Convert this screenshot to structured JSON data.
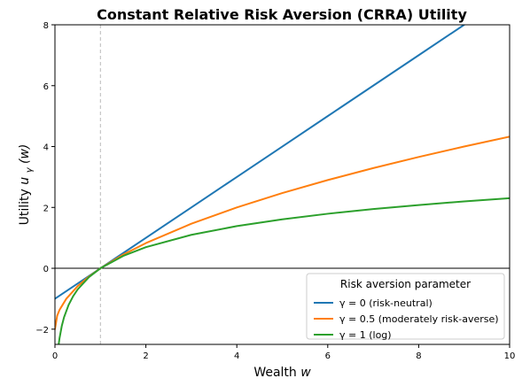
{
  "chart_data": {
    "type": "line",
    "title": "Constant Relative Risk Aversion (CRRA) Utility",
    "xlabel_text": "Wealth",
    "xlabel_var": "w",
    "ylabel_text": "Utility",
    "ylabel_var": "u",
    "ylabel_sub": "γ",
    "ylabel_arg": "(w)",
    "xlim": [
      0,
      10
    ],
    "ylim": [
      -2.5,
      8
    ],
    "xticks": [
      0,
      2,
      4,
      6,
      8,
      10
    ],
    "yticks": [
      -2,
      0,
      2,
      4,
      6,
      8
    ],
    "xtick_labels": [
      "0",
      "2",
      "4",
      "6",
      "8",
      "10"
    ],
    "ytick_labels": [
      "−2",
      "0",
      "2",
      "4",
      "6",
      "8"
    ],
    "reference_lines": {
      "horizontal_y": 0,
      "vertical_x": 1
    },
    "legend": {
      "title": "Risk aversion parameter",
      "placement": "lower-right"
    },
    "series": [
      {
        "name": "γ = 0 (risk-neutral)",
        "gamma": 0,
        "color": "#1f77b4",
        "x": [
          0,
          1,
          2,
          3,
          4,
          5,
          6,
          7,
          8,
          9
        ],
        "y": [
          -1,
          0,
          1,
          2,
          3,
          4,
          5,
          6,
          7,
          8
        ]
      },
      {
        "name": "γ = 0.5 (moderately risk-averse)",
        "gamma": 0.5,
        "color": "#ff7f0e",
        "x": [
          0,
          0.05,
          0.1,
          0.25,
          0.5,
          0.75,
          1,
          1.5,
          2,
          3,
          4,
          5,
          6,
          7,
          8,
          9,
          10
        ],
        "y": [
          -2,
          -1.553,
          -1.368,
          -1,
          -0.586,
          -0.268,
          0,
          0.449,
          0.828,
          1.464,
          2,
          2.472,
          2.899,
          3.292,
          3.657,
          4,
          4.325
        ]
      },
      {
        "name": "γ = 1 (log)",
        "gamma": 1,
        "color": "#2ca02c",
        "x": [
          0.082,
          0.1,
          0.15,
          0.2,
          0.3,
          0.4,
          0.5,
          0.75,
          1,
          1.5,
          2,
          3,
          4,
          5,
          6,
          7,
          8,
          9,
          10
        ],
        "y": [
          -2.5,
          -2.303,
          -1.897,
          -1.609,
          -1.204,
          -0.916,
          -0.693,
          -0.288,
          0,
          0.405,
          0.693,
          1.099,
          1.386,
          1.609,
          1.792,
          1.946,
          2.079,
          2.197,
          2.303
        ]
      }
    ]
  }
}
